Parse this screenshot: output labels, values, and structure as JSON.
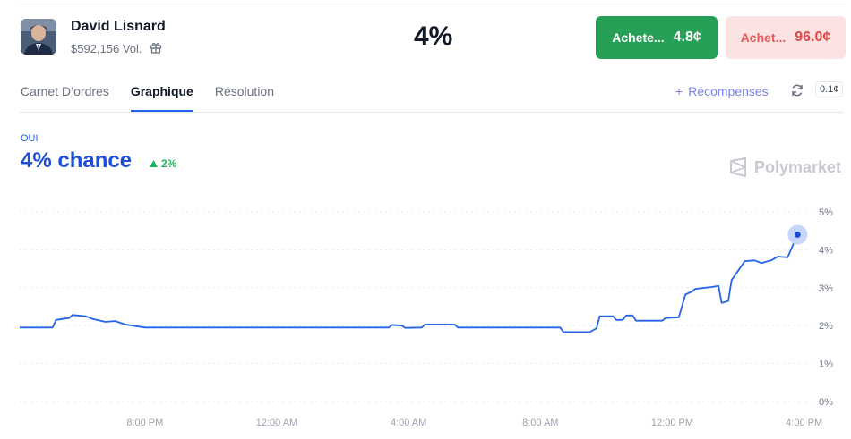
{
  "header": {
    "name": "David Lisnard",
    "volume": "$592,156 Vol.",
    "big_percent": "4%",
    "buy_yes": {
      "label": "Achete...",
      "price": "4.8¢"
    },
    "buy_no": {
      "label": "Achet...",
      "price": "96.0¢"
    }
  },
  "tabs": [
    {
      "label": "Carnet D’ordres"
    },
    {
      "label": "Graphique"
    },
    {
      "label": "Résolution"
    }
  ],
  "tools": {
    "rewards_label": "Récompenses",
    "rewards_plus": "+",
    "tick": "0.1¢"
  },
  "outcome": {
    "label": "OUI",
    "chance": "4% chance",
    "delta": "2%"
  },
  "brand": "Polymarket",
  "colors": {
    "line": "#2563eb",
    "yes": "#27a057",
    "no": "#e04848"
  },
  "chart_data": {
    "type": "line",
    "y_ticks": [
      "5%",
      "4%",
      "3%",
      "2%",
      "1%",
      "0%"
    ],
    "x_ticks": [
      "8:00 PM",
      "12:00 AM",
      "4:00 AM",
      "8:00 AM",
      "12:00 PM",
      "4:00 PM"
    ],
    "ylim": [
      0,
      5
    ],
    "grid": true,
    "series": [
      {
        "values": [
          [
            0,
            1.95
          ],
          [
            1.0,
            1.95
          ],
          [
            1.1,
            2.15
          ],
          [
            1.5,
            2.2
          ],
          [
            1.6,
            2.28
          ],
          [
            2.0,
            2.25
          ],
          [
            2.2,
            2.18
          ],
          [
            2.6,
            2.1
          ],
          [
            2.9,
            2.12
          ],
          [
            3.2,
            2.03
          ],
          [
            3.8,
            1.95
          ],
          [
            4.5,
            1.95
          ],
          [
            6,
            1.95
          ],
          [
            8,
            1.95
          ],
          [
            10.0,
            1.95
          ],
          [
            11.2,
            1.95
          ],
          [
            11.3,
            2.02
          ],
          [
            11.6,
            2.0
          ],
          [
            11.7,
            1.94
          ],
          [
            12.2,
            1.95
          ],
          [
            12.3,
            2.03
          ],
          [
            13.2,
            2.03
          ],
          [
            13.3,
            1.95
          ],
          [
            14.5,
            1.95
          ],
          [
            15.5,
            1.95
          ],
          [
            16.4,
            1.95
          ],
          [
            16.5,
            1.83
          ],
          [
            17.3,
            1.83
          ],
          [
            17.5,
            1.93
          ],
          [
            17.6,
            2.25
          ],
          [
            18.0,
            2.25
          ],
          [
            18.1,
            2.15
          ],
          [
            18.3,
            2.15
          ],
          [
            18.4,
            2.27
          ],
          [
            18.6,
            2.27
          ],
          [
            18.7,
            2.13
          ],
          [
            19.5,
            2.13
          ],
          [
            19.6,
            2.2
          ],
          [
            20.0,
            2.22
          ],
          [
            20.2,
            2.82
          ],
          [
            20.4,
            2.9
          ],
          [
            20.5,
            2.97
          ],
          [
            20.8,
            3.0
          ],
          [
            21.0,
            3.02
          ],
          [
            21.2,
            3.05
          ],
          [
            21.3,
            2.6
          ],
          [
            21.5,
            2.65
          ],
          [
            21.6,
            3.2
          ],
          [
            21.8,
            3.45
          ],
          [
            22.0,
            3.7
          ],
          [
            22.3,
            3.72
          ],
          [
            22.5,
            3.65
          ],
          [
            22.8,
            3.72
          ],
          [
            23.0,
            3.82
          ],
          [
            23.3,
            3.8
          ],
          [
            23.6,
            4.4
          ]
        ]
      }
    ]
  }
}
